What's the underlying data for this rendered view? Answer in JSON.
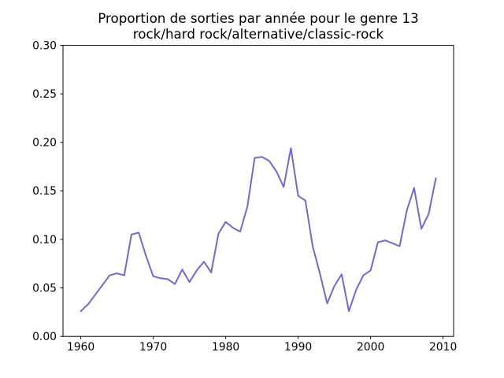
{
  "chart_data": {
    "type": "line",
    "title_line1": "Proportion de sorties par année pour le genre 13",
    "title_line2": "rock/hard rock/alternative/classic-rock",
    "xlabel": "",
    "ylabel": "",
    "grid": false,
    "legend": null,
    "background_color": "#ffffff",
    "line_color": "#7468c8",
    "axis_color": "#000000",
    "xlim": [
      1957.55,
      2011.45
    ],
    "ylim": [
      0.0,
      0.3
    ],
    "x_ticks": [
      1960,
      1970,
      1980,
      1990,
      2000,
      2010
    ],
    "x_tick_labels": [
      "1960",
      "1970",
      "1980",
      "1990",
      "2000",
      "2010"
    ],
    "y_ticks": [
      0.0,
      0.05,
      0.1,
      0.15,
      0.2,
      0.25,
      0.3
    ],
    "y_tick_labels": [
      "0.00",
      "0.05",
      "0.10",
      "0.15",
      "0.20",
      "0.25",
      "0.30"
    ],
    "x": [
      1960,
      1961,
      1962,
      1963,
      1964,
      1965,
      1966,
      1967,
      1968,
      1969,
      1970,
      1971,
      1972,
      1973,
      1974,
      1975,
      1976,
      1977,
      1978,
      1979,
      1980,
      1981,
      1982,
      1983,
      1984,
      1985,
      1986,
      1987,
      1988,
      1989,
      1990,
      1991,
      1992,
      1993,
      1994,
      1995,
      1996,
      1997,
      1998,
      1999,
      2000,
      2001,
      2002,
      2003,
      2004,
      2005,
      2006,
      2007,
      2008,
      2009
    ],
    "series": [
      {
        "name": "proportion",
        "values": [
          0.026,
          0.033,
          0.043,
          0.053,
          0.063,
          0.065,
          0.063,
          0.105,
          0.107,
          0.083,
          0.062,
          0.06,
          0.059,
          0.054,
          0.069,
          0.056,
          0.068,
          0.077,
          0.066,
          0.106,
          0.118,
          0.112,
          0.108,
          0.134,
          0.184,
          0.185,
          0.181,
          0.17,
          0.154,
          0.194,
          0.145,
          0.14,
          0.093,
          0.065,
          0.034,
          0.052,
          0.064,
          0.026,
          0.048,
          0.063,
          0.068,
          0.097,
          0.099,
          0.096,
          0.093,
          0.13,
          0.153,
          0.111,
          0.126,
          0.163
        ]
      }
    ]
  }
}
